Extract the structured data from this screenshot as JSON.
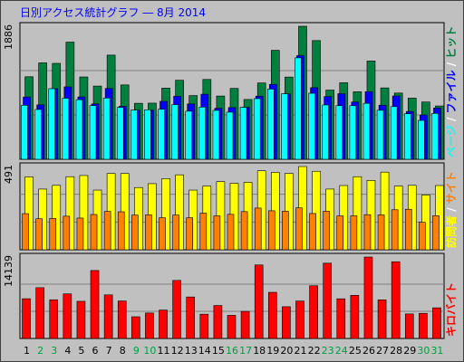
{
  "chart_data": {
    "title": "日別アクセス統計グラフ ― 8月 2014",
    "x": [
      "1",
      "2",
      "3",
      "4",
      "5",
      "6",
      "7",
      "8",
      "9",
      "10",
      "11",
      "12",
      "13",
      "14",
      "15",
      "16",
      "17",
      "18",
      "19",
      "20",
      "21",
      "22",
      "23",
      "24",
      "25",
      "26",
      "27",
      "28",
      "29",
      "30",
      "31"
    ],
    "weekend_days": [
      "2",
      "3",
      "9",
      "10",
      "16",
      "17",
      "23",
      "24",
      "30",
      "31"
    ],
    "colors": {
      "title": "#0000ff",
      "pageview": "#00ffff",
      "hits": "#007f3f",
      "files": "#0000ff",
      "visits": "#ffff00",
      "sites": "#ff8000",
      "kbytes": "#ff0000",
      "weekday_label": "#000000",
      "weekend_label": "#00a040",
      "panel_bg": "#c0c0c0",
      "grid": "#808080"
    },
    "panels": [
      {
        "type": "bar",
        "ymax_label": "1886",
        "ymax": 1886,
        "legend_parts": [
          {
            "text": "ページ",
            "color": "#00ffff"
          },
          {
            "text": " / ",
            "color": "#ffffff"
          },
          {
            "text": "ファイル",
            "color": "#0000ff"
          },
          {
            "text": " / ",
            "color": "#ffffff"
          },
          {
            "text": "ヒット",
            "color": "#007f3f"
          }
        ],
        "series": [
          {
            "name": "ヒット",
            "values": [
              1170,
              1367,
              1360,
              1661,
              1167,
              1038,
              1477,
              1054,
              794,
              796,
              1009,
              1120,
              903,
              1132,
              897,
              1005,
              848,
              1082,
              1545,
              1166,
              1886,
              1683,
              981,
              1085,
              957,
              1393,
              1012,
              939,
              867,
              812,
              756
            ]
          },
          {
            "name": "ファイル",
            "values": [
              883,
              771,
              1001,
              1027,
              884,
              785,
              1005,
              750,
              697,
              696,
              822,
              893,
              785,
              922,
              723,
              733,
              738,
              895,
              1062,
              928,
              1470,
              1015,
              890,
              930,
              812,
              958,
              767,
              898,
              678,
              628,
              727
            ]
          },
          {
            "name": "ページ",
            "values": [
              766,
              706,
              1001,
              866,
              845,
              761,
              868,
              735,
              698,
              702,
              709,
              775,
              682,
              740,
              693,
              668,
              737,
              860,
              995,
              929,
              1438,
              936,
              770,
              760,
              760,
              793,
              695,
              747,
              646,
              551,
              650
            ]
          }
        ]
      },
      {
        "type": "bar",
        "ymax_label": "491",
        "ymax": 491,
        "legend_parts": [
          {
            "text": "訪問者",
            "color": "#ffff00"
          },
          {
            "text": " / ",
            "color": "#ffffff"
          },
          {
            "text": "サイト",
            "color": "#ff8000"
          }
        ],
        "series": [
          {
            "name": "訪問者",
            "values": [
              430,
              358,
              380,
              431,
              438,
              352,
              450,
              450,
              367,
              390,
              420,
              442,
              352,
              376,
              402,
              392,
              398,
              466,
              457,
              450,
              491,
              463,
              358,
              379,
              431,
              409,
              458,
              376,
              380,
              323,
              379
            ]
          },
          {
            "name": "サイト",
            "values": [
              213,
              183,
              185,
              198,
              187,
              208,
              226,
              224,
              205,
              206,
              189,
              205,
              189,
              216,
              200,
              209,
              225,
              246,
              230,
              227,
              247,
              214,
              227,
              200,
              200,
              207,
              206,
              236,
              239,
              162,
              201
            ]
          }
        ]
      },
      {
        "type": "bar",
        "ymax_label": "14139",
        "ymax": 14139,
        "legend_parts": [
          {
            "text": "キロバイト",
            "color": "#ff0000"
          }
        ],
        "series": [
          {
            "name": "キロバイト",
            "values": [
              6900,
              8820,
              6720,
              7740,
              6450,
              11800,
              7570,
              6510,
              3770,
              4420,
              4930,
              10080,
              7200,
              4210,
              5720,
              4020,
              4700,
              12760,
              8010,
              5510,
              6500,
              9150,
              13070,
              6890,
              7490,
              14139,
              6710,
              13320,
              4260,
              4360,
              5320
            ]
          }
        ]
      }
    ]
  }
}
